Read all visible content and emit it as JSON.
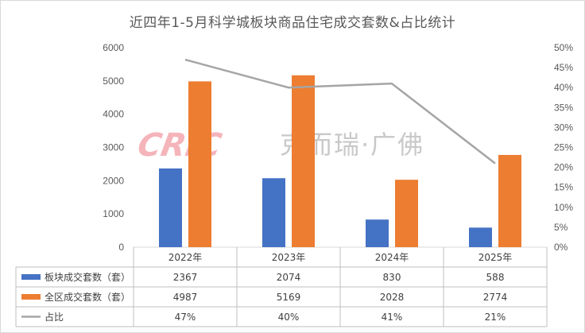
{
  "chart_data": {
    "type": "bar",
    "title": "近四年1-5月科学城板块商品住宅成交套数&占比统计",
    "categories": [
      "2022年",
      "2023年",
      "2024年",
      "2025年"
    ],
    "series": [
      {
        "name": "板块成交套数（套）",
        "type": "bar",
        "axis": "left",
        "color": "#4472c4",
        "values": [
          2367,
          2074,
          830,
          588
        ],
        "labels": [
          "2367",
          "2074",
          "830",
          "588"
        ]
      },
      {
        "name": "全区成交套数（套）",
        "type": "bar",
        "axis": "left",
        "color": "#ed7d31",
        "values": [
          4987,
          5169,
          2028,
          2774
        ],
        "labels": [
          "4987",
          "5169",
          "2028",
          "2774"
        ]
      },
      {
        "name": "占比",
        "type": "line",
        "axis": "right",
        "color": "#a5a5a5",
        "values": [
          0.47,
          0.4,
          0.41,
          0.21
        ],
        "labels": [
          "47%",
          "40%",
          "41%",
          "21%"
        ]
      }
    ],
    "y_left": {
      "ylim": [
        0,
        6000
      ],
      "ticks": [
        "0",
        "1000",
        "2000",
        "3000",
        "4000",
        "5000",
        "6000"
      ]
    },
    "y_right": {
      "ylim": [
        0,
        0.5
      ],
      "ticks": [
        "0%",
        "5%",
        "10%",
        "15%",
        "20%",
        "25%",
        "30%",
        "35%",
        "40%",
        "45%",
        "50%"
      ]
    },
    "grid": false,
    "legend": "data-table",
    "watermark": {
      "brand": "CRIC",
      "text": "克而瑞·广佛",
      "color": "#f4a7ae"
    }
  }
}
